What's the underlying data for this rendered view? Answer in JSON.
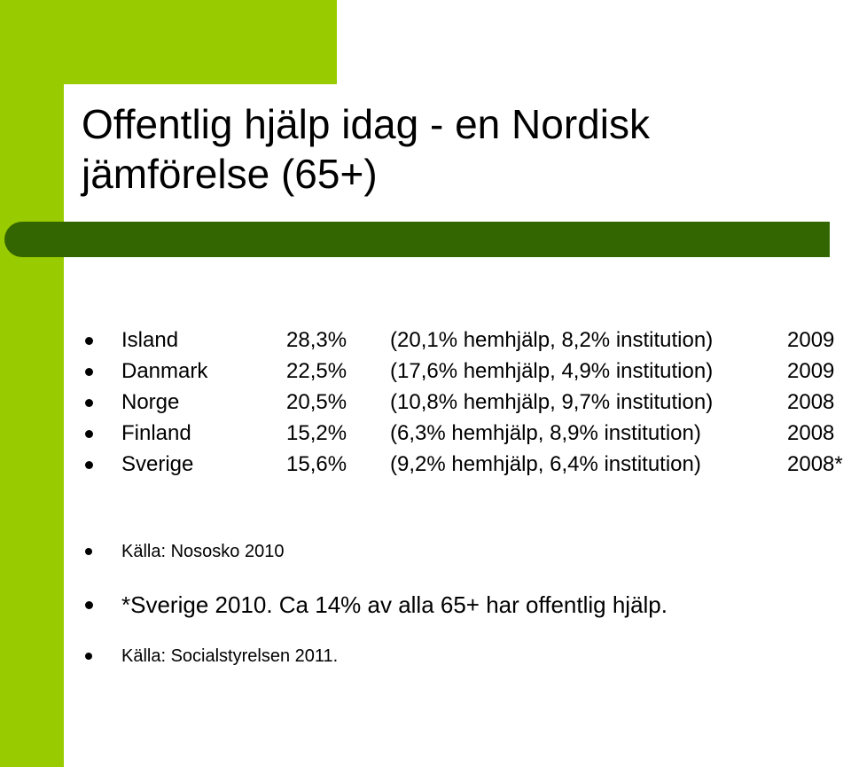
{
  "slide": {
    "title_line1": "Offentlig hjälp idag - en Nordisk",
    "title_line2": "jämförelse (65+)"
  },
  "rows": [
    {
      "country": "Island",
      "total": "28,3%",
      "detail": "(20,1% hemhjälp, 8,2% institution)",
      "year": "2009"
    },
    {
      "country": "Danmark",
      "total": "22,5%",
      "detail": "(17,6% hemhjälp, 4,9% institution)",
      "year": "2009"
    },
    {
      "country": "Norge",
      "total": "20,5%",
      "detail": "(10,8% hemhjälp, 9,7% institution)",
      "year": "2008"
    },
    {
      "country": "Finland",
      "total": "15,2%",
      "detail": "(6,3% hemhjälp, 8,9% institution)",
      "year": "2008"
    },
    {
      "country": "Sverige",
      "total": "15,6%",
      "detail": "(9,2% hemhjälp, 6,4% institution)",
      "year": "2008*"
    }
  ],
  "notes": [
    "Källa: Nososko 2010",
    "*Sverige 2010. Ca 14% av alla 65+ har offentlig hjälp.",
    "Källa: Socialstyrelsen 2011."
  ],
  "colors": {
    "accent_green": "#99cc00",
    "dark_green_bar": "#336600"
  }
}
